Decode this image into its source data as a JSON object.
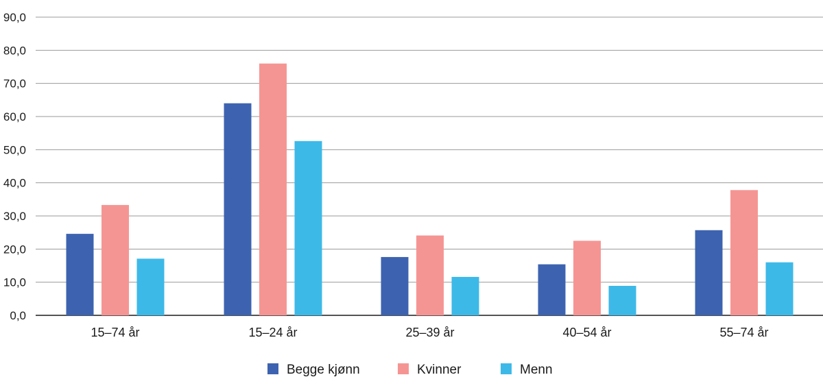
{
  "chart_data": {
    "type": "bar",
    "categories": [
      "15–74 år",
      "15–24 år",
      "25–39 år",
      "40–54 år",
      "55–74 år"
    ],
    "series": [
      {
        "name": "Begge kjønn",
        "color": "#3d63b0",
        "values": [
          24.6,
          64.0,
          17.6,
          15.4,
          25.7
        ]
      },
      {
        "name": "Kvinner",
        "color": "#f59593",
        "values": [
          33.3,
          76.0,
          24.1,
          22.5,
          37.8
        ]
      },
      {
        "name": "Menn",
        "color": "#3db9e8",
        "values": [
          17.1,
          52.6,
          11.6,
          8.9,
          16.0
        ]
      }
    ],
    "ylim": [
      0,
      90
    ],
    "yticks": [
      "0,0",
      "10,0",
      "20,0",
      "30,0",
      "40,0",
      "50,0",
      "60,0",
      "70,0",
      "80,0",
      "90,0"
    ],
    "grid": true,
    "legend_position": "bottom"
  }
}
